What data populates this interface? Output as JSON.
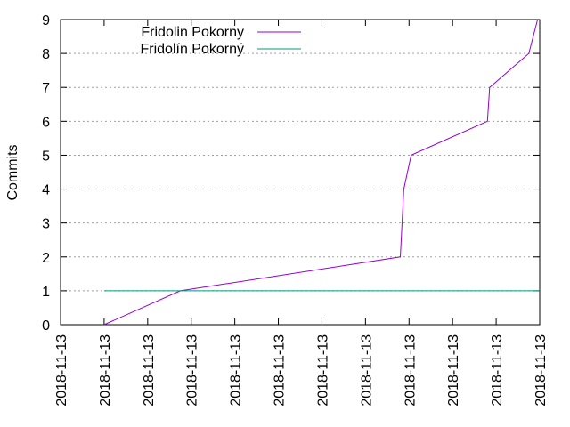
{
  "chart_data": {
    "type": "line",
    "title": "",
    "xlabel": "",
    "ylabel": "Commits",
    "ylim": [
      0,
      9
    ],
    "yticks": [
      "0",
      "1",
      "2",
      "3",
      "4",
      "5",
      "6",
      "7",
      "8",
      "9"
    ],
    "xlim": [
      0,
      11
    ],
    "xtick_labels": [
      "2018-11-13",
      "2018-11-13",
      "2018-11-13",
      "2018-11-13",
      "2018-11-13",
      "2018-11-13",
      "2018-11-13",
      "2018-11-13",
      "2018-11-13",
      "2018-11-13",
      "2018-11-13",
      "2018-11-13"
    ],
    "grid": "horizontal dotted",
    "legend_position": "top-left",
    "series": [
      {
        "name": "Fridolin Pokorny",
        "color": "#9400d3",
        "x": [
          1.0,
          2.75,
          7.8,
          7.88,
          8.05,
          9.8,
          9.85,
          10.75,
          10.95
        ],
        "y": [
          0,
          1,
          2,
          4,
          5,
          6,
          7,
          8,
          9
        ]
      },
      {
        "name": "Fridolín Pokorný",
        "color": "#009e73",
        "x": [
          1.0,
          11.0
        ],
        "y": [
          1,
          1
        ]
      }
    ]
  }
}
